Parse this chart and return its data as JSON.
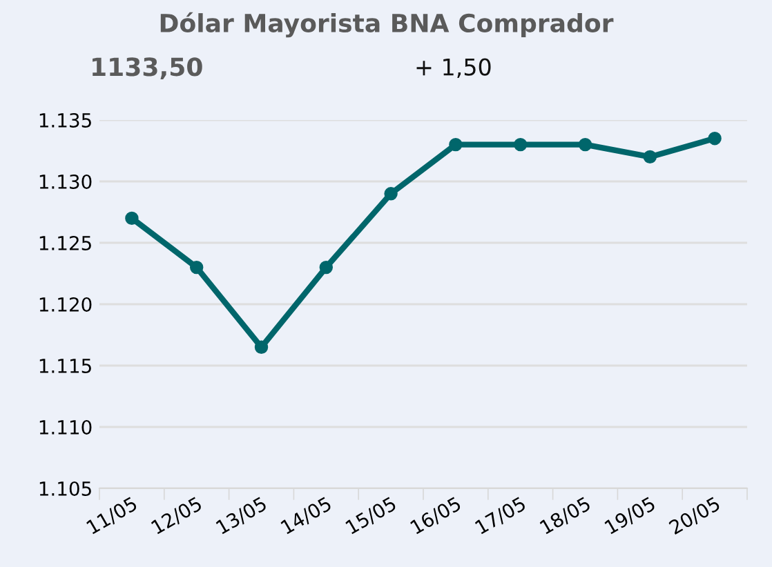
{
  "chart_data": {
    "type": "line",
    "title": "Dólar Mayorista BNA Comprador",
    "annotations": [
      "1133,50",
      "+ 1,50"
    ],
    "categories": [
      "11/05",
      "12/05",
      "13/05",
      "14/05",
      "15/05",
      "16/05",
      "17/05",
      "18/05",
      "19/05",
      "20/05"
    ],
    "series": [
      {
        "color": "#00666b",
        "values": [
          1127,
          1123,
          1116.5,
          1123,
          1129,
          1133,
          1133,
          1133,
          1132,
          1133.5
        ]
      }
    ],
    "ylim": [
      1105,
      1135
    ],
    "yticks": [
      {
        "value": 1105,
        "label": "1.105"
      },
      {
        "value": 1110,
        "label": "1.110"
      },
      {
        "value": 1115,
        "label": "1.115"
      },
      {
        "value": 1120,
        "label": "1.120"
      },
      {
        "value": 1125,
        "label": "1.125"
      },
      {
        "value": 1130,
        "label": "1.130"
      },
      {
        "value": 1135,
        "label": "1.135"
      }
    ],
    "grid": "y",
    "marker": "circle",
    "line_style": "solid"
  }
}
